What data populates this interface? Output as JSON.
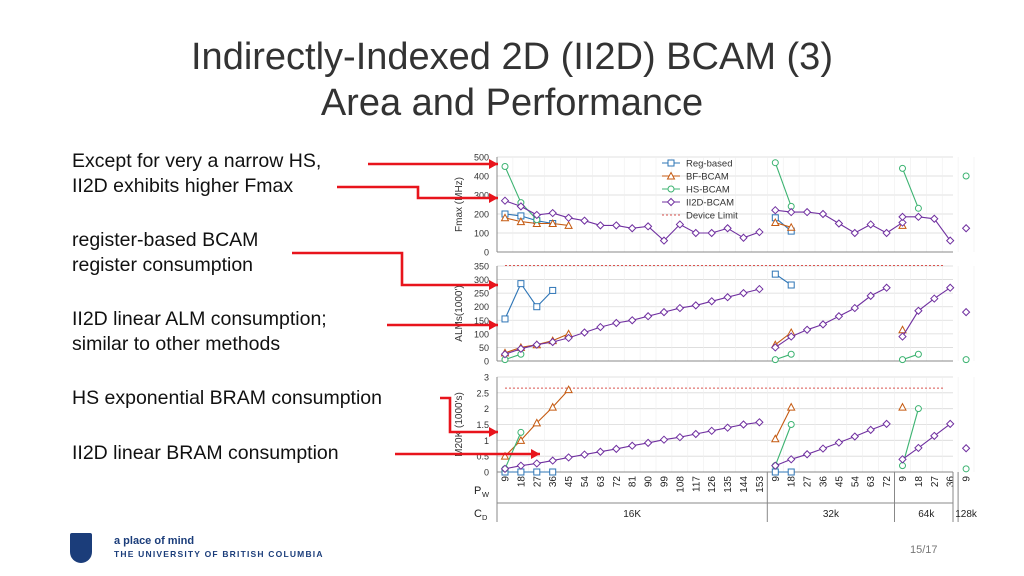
{
  "slide": {
    "title_line1": "Indirectly-Indexed 2D (II2D) BCAM (3)",
    "title_line2": "Area and Performance",
    "bullets": [
      "Except for very a narrow HS,",
      "II2D exhibits higher Fmax",
      "register-based BCAM",
      "register consumption",
      "II2D linear ALM consumption;",
      "similar to other methods",
      "HS exponential BRAM consumption",
      "II2D linear BRAM consumption"
    ],
    "footer": {
      "tagline": "a place of mind",
      "university": "THE UNIVERSITY OF BRITISH COLUMBIA",
      "page": "15/17"
    }
  },
  "chart_data": {
    "type": "line",
    "x_axis": {
      "pw_label": "P",
      "pw_sub": "W",
      "cd_label": "C",
      "cd_sub": "D",
      "groups": [
        {
          "cd": "16K",
          "pw": [
            "9",
            "18",
            "27",
            "36",
            "45",
            "54",
            "63",
            "72",
            "81",
            "90",
            "99",
            "108",
            "117",
            "126",
            "135",
            "144",
            "153"
          ]
        },
        {
          "cd": "32k",
          "pw": [
            "9",
            "18",
            "27",
            "36",
            "45",
            "54",
            "63",
            "72"
          ]
        },
        {
          "cd": "64k",
          "pw": [
            "9",
            "18",
            "27",
            "36"
          ]
        },
        {
          "cd": "128k",
          "pw": [
            "9"
          ]
        }
      ]
    },
    "legend": {
      "placement": "top-right of first panel",
      "entries": [
        {
          "name": "Reg-based",
          "color": "#2e75b6",
          "marker": "square"
        },
        {
          "name": "BF-BCAM",
          "color": "#c55a11",
          "marker": "triangle"
        },
        {
          "name": "HS-BCAM",
          "color": "#3cb371",
          "marker": "circle"
        },
        {
          "name": "II2D-BCAM",
          "color": "#7030a0",
          "marker": "diamond"
        },
        {
          "name": "Device Limit",
          "color": "#d9534f",
          "marker": "dotted-line"
        }
      ]
    },
    "panels": [
      {
        "ylabel": "Fmax (MHz)",
        "ylim": [
          0,
          500
        ],
        "yticks": [
          "0",
          "100",
          "200",
          "300",
          "400",
          "500"
        ],
        "device_limit": null,
        "series": {
          "Reg-based": [
            [
              0,
              200
            ],
            [
              1,
              190
            ],
            [
              2,
              165
            ],
            [
              3,
              150
            ],
            null,
            [
              17,
              180
            ],
            [
              18,
              110
            ]
          ],
          "BF-BCAM": [
            [
              0,
              180
            ],
            [
              1,
              160
            ],
            [
              2,
              150
            ],
            [
              3,
              150
            ],
            [
              4,
              140
            ],
            null,
            [
              17,
              155
            ],
            [
              18,
              130
            ],
            null,
            [
              25,
              140
            ]
          ],
          "HS-BCAM": [
            [
              0,
              450
            ],
            [
              1,
              260
            ],
            [
              2,
              170
            ],
            null,
            [
              17,
              470
            ],
            [
              18,
              240
            ],
            null,
            [
              25,
              440
            ],
            [
              26,
              230
            ],
            null,
            [
              29,
              400
            ]
          ],
          "II2D-BCAM": [
            [
              0,
              270
            ],
            [
              1,
              240
            ],
            [
              2,
              195
            ],
            [
              3,
              205
            ],
            [
              4,
              180
            ],
            [
              5,
              165
            ],
            [
              6,
              140
            ],
            [
              7,
              140
            ],
            [
              8,
              125
            ],
            [
              9,
              135
            ],
            [
              10,
              60
            ],
            [
              11,
              145
            ],
            [
              12,
              100
            ],
            [
              13,
              100
            ],
            [
              14,
              125
            ],
            [
              15,
              75
            ],
            [
              16,
              105
            ],
            null,
            [
              17,
              220
            ],
            [
              18,
              210
            ],
            [
              19,
              210
            ],
            [
              20,
              200
            ],
            [
              21,
              150
            ],
            [
              22,
              100
            ],
            [
              23,
              145
            ],
            [
              24,
              100
            ],
            [
              25,
              155
            ],
            null,
            [
              25,
              185
            ],
            [
              26,
              185
            ],
            [
              27,
              175
            ],
            [
              28,
              60
            ],
            null,
            [
              29,
              125
            ]
          ]
        }
      },
      {
        "ylabel": "ALMs(1000')",
        "ylim": [
          0,
          350
        ],
        "yticks": [
          "0",
          "50",
          "100",
          "150",
          "200",
          "250",
          "300",
          "350"
        ],
        "device_limit": 352,
        "series": {
          "Reg-based": [
            [
              0,
              155
            ],
            [
              1,
              285
            ],
            [
              2,
              200
            ],
            [
              3,
              260
            ],
            null,
            [
              17,
              320
            ],
            [
              18,
              280
            ]
          ],
          "BF-BCAM": [
            [
              0,
              30
            ],
            [
              1,
              50
            ],
            [
              2,
              60
            ],
            [
              3,
              75
            ],
            [
              4,
              100
            ],
            null,
            [
              17,
              60
            ],
            [
              18,
              105
            ],
            null,
            [
              25,
              115
            ]
          ],
          "HS-BCAM": [
            [
              0,
              5
            ],
            [
              1,
              25
            ],
            null,
            [
              17,
              5
            ],
            [
              18,
              25
            ],
            null,
            [
              25,
              5
            ],
            [
              26,
              25
            ],
            null,
            [
              29,
              5
            ]
          ],
          "II2D-BCAM": [
            [
              0,
              25
            ],
            [
              1,
              45
            ],
            [
              2,
              60
            ],
            [
              3,
              70
            ],
            [
              4,
              85
            ],
            [
              5,
              105
            ],
            [
              6,
              125
            ],
            [
              7,
              140
            ],
            [
              8,
              150
            ],
            [
              9,
              165
            ],
            [
              10,
              180
            ],
            [
              11,
              195
            ],
            [
              12,
              205
            ],
            [
              13,
              220
            ],
            [
              14,
              235
            ],
            [
              15,
              250
            ],
            [
              16,
              265
            ],
            null,
            [
              17,
              50
            ],
            [
              18,
              90
            ],
            [
              19,
              115
            ],
            [
              20,
              135
            ],
            [
              21,
              165
            ],
            [
              22,
              195
            ],
            [
              23,
              240
            ],
            [
              24,
              270
            ],
            null,
            [
              25,
              90
            ],
            [
              26,
              185
            ],
            [
              27,
              230
            ],
            [
              28,
              270
            ],
            null,
            [
              29,
              180
            ]
          ]
        }
      },
      {
        "ylabel": "M20K  (1000's)",
        "ylim": [
          0,
          3
        ],
        "yticks": [
          "0",
          "0.5",
          "1",
          "1.5",
          "2",
          "2.5",
          "3"
        ],
        "device_limit": 2.65,
        "series": {
          "Reg-based": [
            [
              0,
              0
            ],
            [
              1,
              0
            ],
            [
              2,
              0
            ],
            [
              3,
              0
            ],
            null,
            [
              17,
              0
            ],
            [
              18,
              0
            ]
          ],
          "BF-BCAM": [
            [
              0,
              0.5
            ],
            [
              1,
              1
            ],
            [
              2,
              1.55
            ],
            [
              3,
              2.05
            ],
            [
              4,
              2.6
            ],
            null,
            [
              17,
              1.05
            ],
            [
              18,
              2.05
            ],
            null,
            [
              25,
              2.05
            ]
          ],
          "HS-BCAM": [
            [
              0,
              0.1
            ],
            [
              1,
              1.25
            ],
            null,
            [
              17,
              0.2
            ],
            [
              18,
              1.5
            ],
            null,
            [
              25,
              0.2
            ],
            [
              26,
              2.0
            ],
            null,
            [
              29,
              0.1
            ]
          ],
          "II2D-BCAM": [
            [
              0,
              0.1
            ],
            [
              1,
              0.2
            ],
            [
              2,
              0.27
            ],
            [
              3,
              0.36
            ],
            [
              4,
              0.46
            ],
            [
              5,
              0.55
            ],
            [
              6,
              0.64
            ],
            [
              7,
              0.73
            ],
            [
              8,
              0.83
            ],
            [
              9,
              0.92
            ],
            [
              10,
              1.02
            ],
            [
              11,
              1.1
            ],
            [
              12,
              1.2
            ],
            [
              13,
              1.3
            ],
            [
              14,
              1.4
            ],
            [
              15,
              1.5
            ],
            [
              16,
              1.57
            ],
            null,
            [
              17,
              0.2
            ],
            [
              18,
              0.4
            ],
            [
              19,
              0.56
            ],
            [
              20,
              0.74
            ],
            [
              21,
              0.93
            ],
            [
              22,
              1.12
            ],
            [
              23,
              1.33
            ],
            [
              24,
              1.52
            ],
            null,
            [
              25,
              0.4
            ],
            [
              26,
              0.76
            ],
            [
              27,
              1.14
            ],
            [
              28,
              1.52
            ],
            null,
            [
              29,
              0.75
            ]
          ]
        }
      }
    ]
  }
}
